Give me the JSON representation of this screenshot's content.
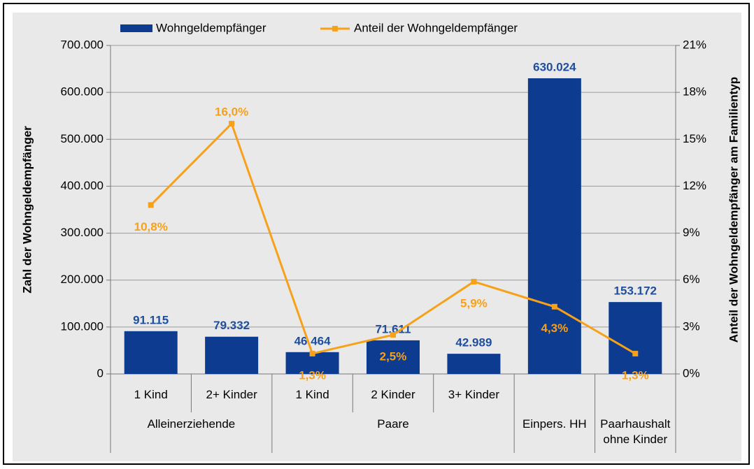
{
  "chart_data": {
    "type": "bar_line",
    "categories": [
      "1 Kind",
      "2+ Kinder",
      "1 Kind",
      "2 Kinder",
      "3+ Kinder",
      null,
      null
    ],
    "category_groups": [
      "Alleinerziehende",
      "Alleinerziehende",
      "Paare",
      "Paare",
      "Paare",
      "Einpers. HH",
      "Paarhaushalt ohne Kinder"
    ],
    "y_label": "Zahl der Wohngeldempfänger",
    "y2_label": "Anteil der Wohngeldempfänger am Familientyp",
    "ylim": [
      0,
      700000
    ],
    "yticks": [
      0,
      {
        "value": 100000,
        "label": "100.000"
      },
      {
        "value": 200000,
        "label": "200.000"
      },
      {
        "value": 300000,
        "label": "300.000"
      },
      {
        "value": 400000,
        "label": "400.000"
      },
      {
        "value": 500000,
        "label": "500.000"
      },
      {
        "value": 600000,
        "label": "600.000"
      },
      {
        "value": 700000,
        "label": "700.000"
      }
    ],
    "y2lim": [
      0,
      21
    ],
    "y2ticks": [
      {
        "value": 0,
        "label": "0%"
      },
      {
        "value": 3,
        "label": "3%"
      },
      {
        "value": 6,
        "label": "6%"
      },
      {
        "value": 9,
        "label": "9%"
      },
      {
        "value": 12,
        "label": "12%"
      },
      {
        "value": 15,
        "label": "15%"
      },
      {
        "value": 18,
        "label": "18%"
      },
      {
        "value": 21,
        "label": "21%"
      }
    ],
    "grid": true,
    "series": [
      {
        "name": "Wohngeldempfänger",
        "type": "bar",
        "color": "#0c3b8f",
        "values": [
          91115,
          79332,
          46464,
          71611,
          42989,
          630024,
          153172
        ],
        "value_labels": [
          "91.115",
          "79.332",
          "46.464",
          "71.611",
          "42.989",
          "630.024",
          "153.172"
        ]
      },
      {
        "name": "Anteil der Wohngeldempfänger",
        "type": "line",
        "axis": "y2",
        "color": "#f7a11a",
        "values": [
          10.8,
          16.0,
          1.3,
          2.5,
          5.9,
          4.3,
          1.3
        ],
        "value_labels": [
          "10,8%",
          "16,0%",
          "1,3%",
          "2,5%",
          "5,9%",
          "4,3%",
          "1,3%"
        ]
      }
    ]
  }
}
